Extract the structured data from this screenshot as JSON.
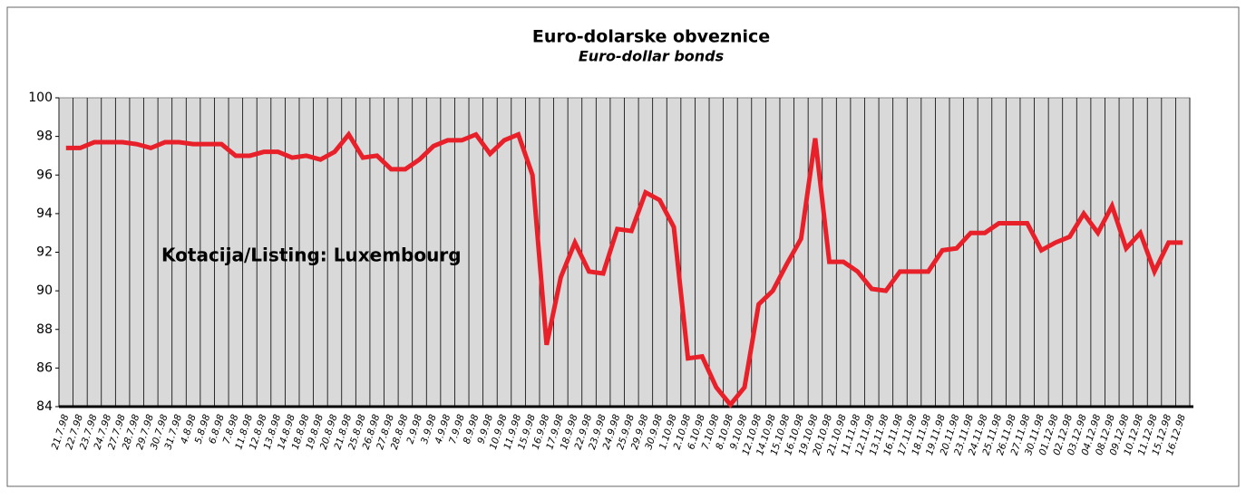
{
  "chart_data": {
    "type": "line",
    "title": "Euro-dolarske obveznice",
    "subtitle": "Euro-dollar bonds",
    "annotation": "Kotacija/Listing: Luxembourg",
    "categories": [
      "21.7.98",
      "22.7.98",
      "23.7.98",
      "24.7.98",
      "27.7.98",
      "28.7.98",
      "29.7.98",
      "30.7.98",
      "31.7.98",
      "4.8.98",
      "5.8.98",
      "6.8.98",
      "7.8.98",
      "11.8.98",
      "12.8.98",
      "13.8.98",
      "14.8.98",
      "18.8.98",
      "19.8.98",
      "20.8.98",
      "21.8.98",
      "25.8.98",
      "26.8.98",
      "27.8.98",
      "28.8.98",
      "2.9.98",
      "3.9.98",
      "4.9.98",
      "7.9.98",
      "8.9.98",
      "9.9.98",
      "10.9.98",
      "11.9.98",
      "15.9.98",
      "16.9.98",
      "17.9.98",
      "18.9.98",
      "22.9.98",
      "23.9.98",
      "24.9.98",
      "25.9.98",
      "29.9.98",
      "30.9.98",
      "1.10.98",
      "2.10.98",
      "6.10.98",
      "7.10.98",
      "8.10.98",
      "9.10.98",
      "12.10.98",
      "14.10.98",
      "15.10.98",
      "16.10.98",
      "19.10.98",
      "20.10.98",
      "21.10.98",
      "11.11.98",
      "12.11.98",
      "13.11.98",
      "16.11.98",
      "17.11.98",
      "18.11.98",
      "19.11.98",
      "20.11.98",
      "23.11.98",
      "24.11.98",
      "25.11.98",
      "26.11.98",
      "27.11.98",
      "30.11.98",
      "01.12.98",
      "02.12.98",
      "03.12.98",
      "04.12.98",
      "08.12.98",
      "09.12.98",
      "10.12.98",
      "11.12.98",
      "15.12.98",
      "16.12.98"
    ],
    "series": [
      {
        "color": "#e8202a",
        "values": [
          97.4,
          97.4,
          97.7,
          97.7,
          97.7,
          97.6,
          97.4,
          97.7,
          97.7,
          97.6,
          97.6,
          97.6,
          97.0,
          97.0,
          97.2,
          97.2,
          96.9,
          97.0,
          96.8,
          97.2,
          98.1,
          96.9,
          97.0,
          96.3,
          96.3,
          96.8,
          97.5,
          97.8,
          97.8,
          98.1,
          97.1,
          97.8,
          98.1,
          96.0,
          87.2,
          90.7,
          92.5,
          91.0,
          90.9,
          93.2,
          93.1,
          95.1,
          94.7,
          93.3,
          86.5,
          86.6,
          85.0,
          84.1,
          85.0,
          89.3,
          90.0,
          91.4,
          92.7,
          97.9,
          91.5,
          91.5,
          91.0,
          90.1,
          90.0,
          91.0,
          91.0,
          91.0,
          92.1,
          92.2,
          93.0,
          93.0,
          93.5,
          93.5,
          93.5,
          92.1,
          92.5,
          92.8,
          94.0,
          93.0,
          94.4,
          92.2,
          93.0,
          91.0,
          92.5,
          92.5
        ]
      }
    ],
    "ylim": [
      84,
      100
    ],
    "yticks": [
      84,
      86,
      88,
      90,
      92,
      94,
      96,
      98,
      100
    ]
  }
}
